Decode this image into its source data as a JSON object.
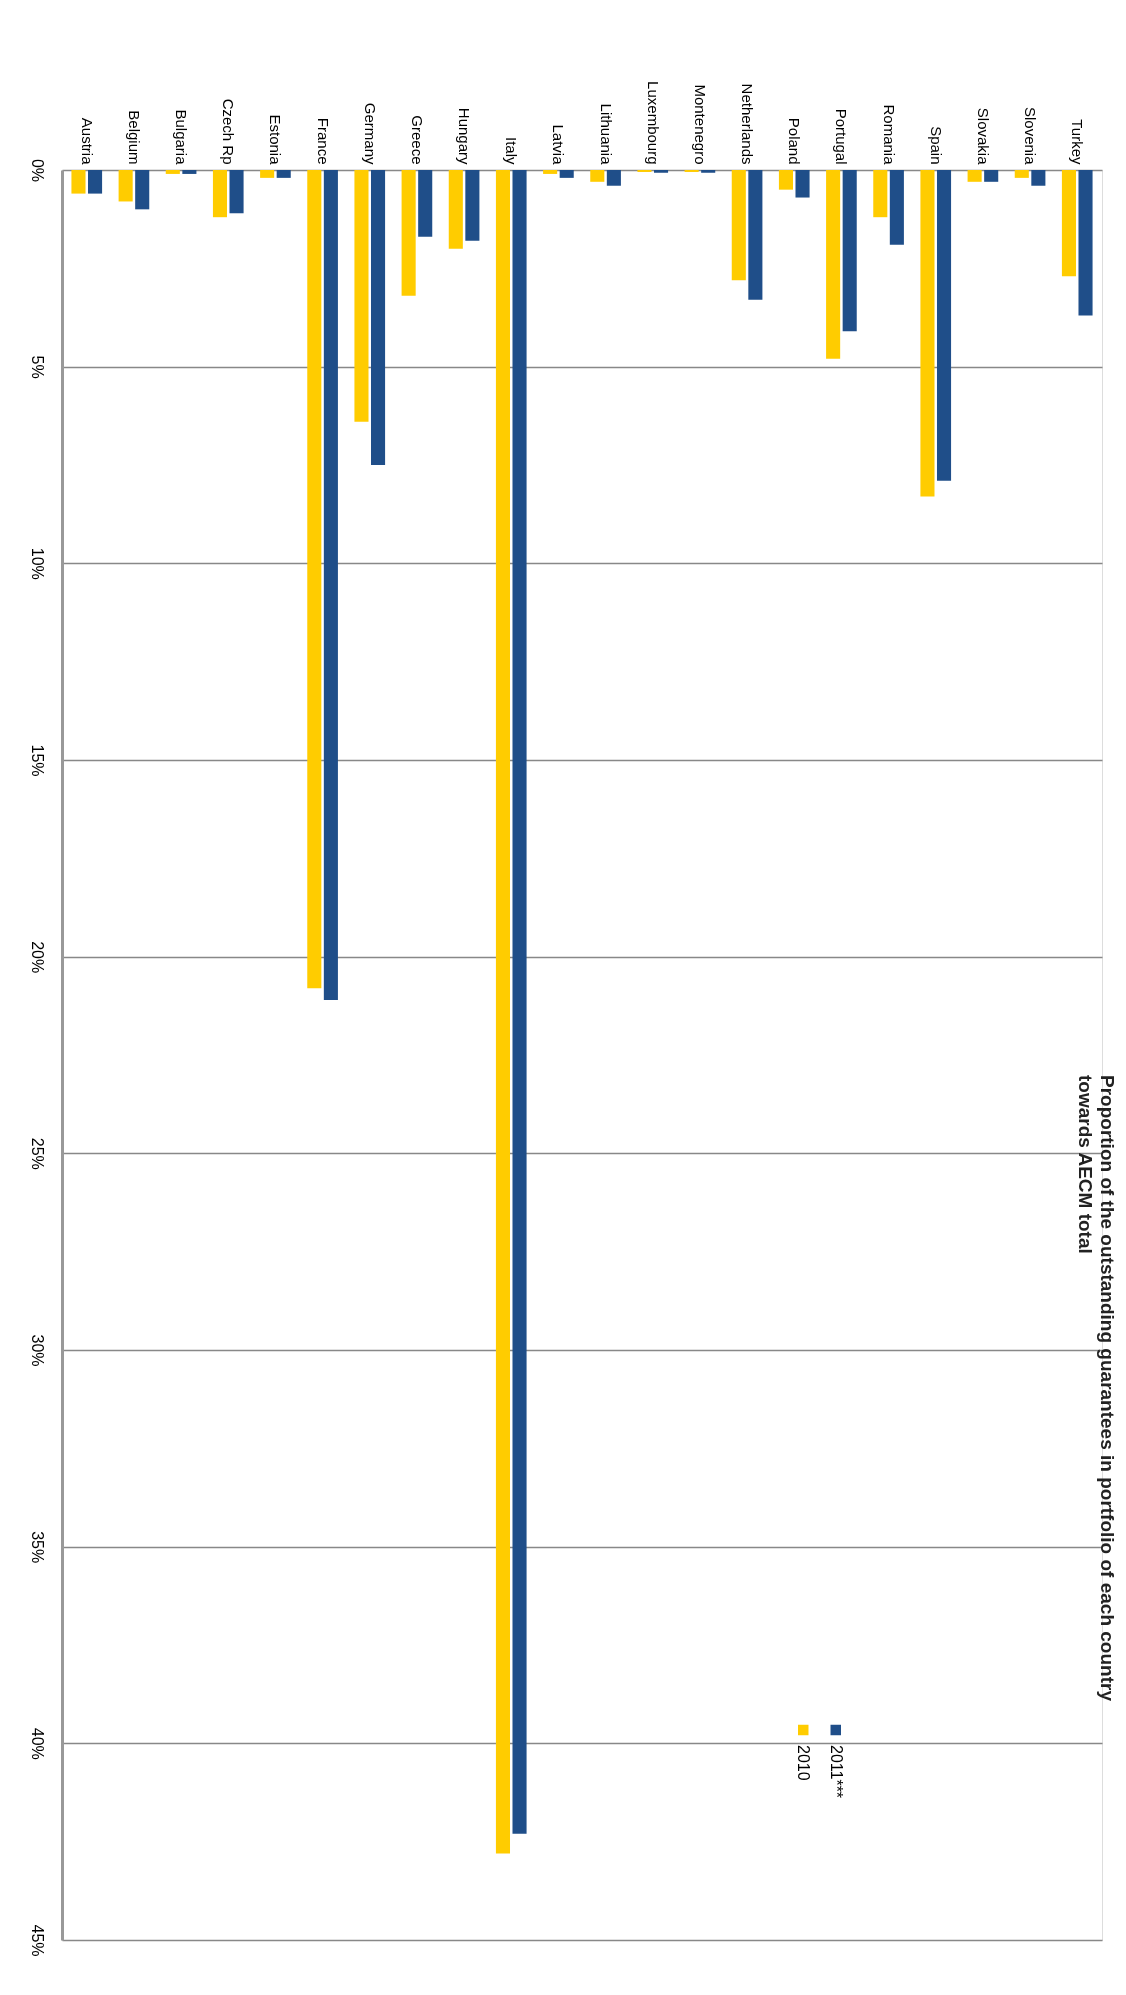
{
  "chart_data": {
    "type": "bar",
    "title": "Proportion of the outstanding guarantees in portfolio of each country\ntowards AECM total",
    "categories": [
      "Austria",
      "Belgium",
      "Bulgaria",
      "Czech Rp",
      "Estonia",
      "France",
      "Germany",
      "Greece",
      "Hungary",
      "Italy",
      "Latvia",
      "Lithuania",
      "Luxembourg",
      "Montenegro",
      "Netherlands",
      "Poland",
      "Portugal",
      "Romania",
      "Spain",
      "Slovakia",
      "Slovenia",
      "Turkey"
    ],
    "series": [
      {
        "name": "2010",
        "color": "#ffcc00",
        "values": [
          0.6,
          0.8,
          0.1,
          1.2,
          0.2,
          20.8,
          6.4,
          3.2,
          2.0,
          42.8,
          0.1,
          0.3,
          0.05,
          0.05,
          2.8,
          0.5,
          4.8,
          1.2,
          8.3,
          0.3,
          0.2,
          2.7
        ]
      },
      {
        "name": "2011***",
        "color": "#1f4e89",
        "values": [
          0.6,
          1.0,
          0.1,
          1.1,
          0.2,
          21.1,
          7.5,
          1.7,
          1.8,
          42.3,
          0.2,
          0.4,
          0.07,
          0.07,
          3.3,
          0.7,
          4.1,
          1.9,
          7.9,
          0.3,
          0.4,
          3.7
        ]
      }
    ],
    "ylim": [
      45,
      0
    ],
    "yticks": [
      {
        "value": 0,
        "label": "0%"
      },
      {
        "value": 5,
        "label": "5%"
      },
      {
        "value": 10,
        "label": "10%"
      },
      {
        "value": 15,
        "label": "15%"
      },
      {
        "value": 20,
        "label": "20%"
      },
      {
        "value": 25,
        "label": "25%"
      },
      {
        "value": 30,
        "label": "30%"
      },
      {
        "value": 35,
        "label": "35%"
      },
      {
        "value": 40,
        "label": "40%"
      },
      {
        "value": 45,
        "label": "45%"
      }
    ],
    "grid": "y",
    "legend": "bottom right"
  }
}
